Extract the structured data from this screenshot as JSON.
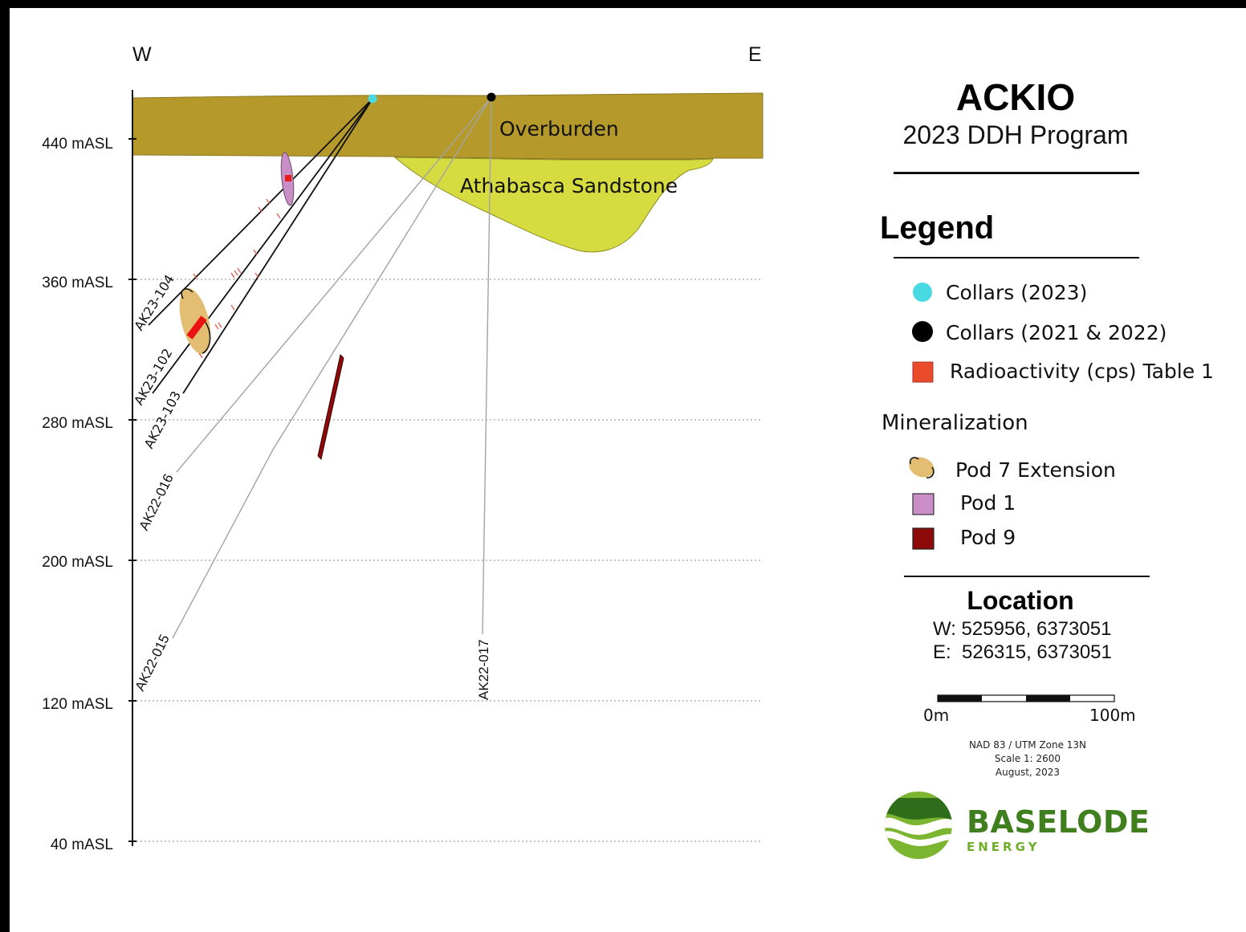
{
  "section": {
    "west_label": "W",
    "east_label": "E",
    "elevation_axis": {
      "range_masl": [
        40,
        480
      ],
      "ticks": [
        {
          "value": 440,
          "label": "440 mASL"
        },
        {
          "value": 360,
          "label": "360 mASL"
        },
        {
          "value": 280,
          "label": "280 mASL"
        },
        {
          "value": 200,
          "label": "200 mASL"
        },
        {
          "value": 120,
          "label": "120 mASL"
        },
        {
          "value": 40,
          "label": "40 mASL"
        }
      ],
      "gridlines": "dotted"
    },
    "units": [
      {
        "name": "Overburden",
        "color": "#b59a2b"
      },
      {
        "name": "Athabasca Sandstone",
        "color": "#d6dc3f"
      }
    ],
    "drill_holes": [
      {
        "id": "AK23-104",
        "collar_type": "2023"
      },
      {
        "id": "AK23-102",
        "collar_type": "2023"
      },
      {
        "id": "AK23-103",
        "collar_type": "2023"
      },
      {
        "id": "AK22-016",
        "collar_type": "2021 & 2022"
      },
      {
        "id": "AK22-015",
        "collar_type": "2021 & 2022"
      },
      {
        "id": "AK22-017",
        "collar_type": "2021 & 2022"
      }
    ]
  },
  "header": {
    "title": "ACKIO",
    "subtitle": "2023 DDH Program"
  },
  "legend": {
    "heading": "Legend",
    "items": [
      {
        "label": "Collars (2023)",
        "icon": "cyan-dot",
        "color": "#49d9e3"
      },
      {
        "label": "Collars (2021 & 2022)",
        "icon": "black-dot",
        "color": "#000000"
      },
      {
        "label": "Radioactivity (cps) Table 1",
        "icon": "red-square",
        "color": "#ea4b2a"
      }
    ],
    "mineralization_heading": "Mineralization",
    "mineralization": [
      {
        "label": "Pod 7 Extension",
        "icon": "tan-ellipse",
        "color": "#e3bd72"
      },
      {
        "label": "Pod 1",
        "icon": "pink-square",
        "color": "#c98ec6"
      },
      {
        "label": "Pod 9",
        "icon": "darkred-square",
        "color": "#8e0a0a"
      }
    ]
  },
  "location": {
    "heading": "Location",
    "west": "W: 525956, 6373051",
    "east": "E:  526315, 6373051"
  },
  "scale_bar": {
    "start_label": "0m",
    "end_label": "100m"
  },
  "notes": {
    "projection": "NAD 83 / UTM Zone 13N",
    "scale": "Scale 1: 2600",
    "date": "August, 2023"
  },
  "brand": {
    "name": "BASELODE",
    "sub": "ENERGY"
  }
}
